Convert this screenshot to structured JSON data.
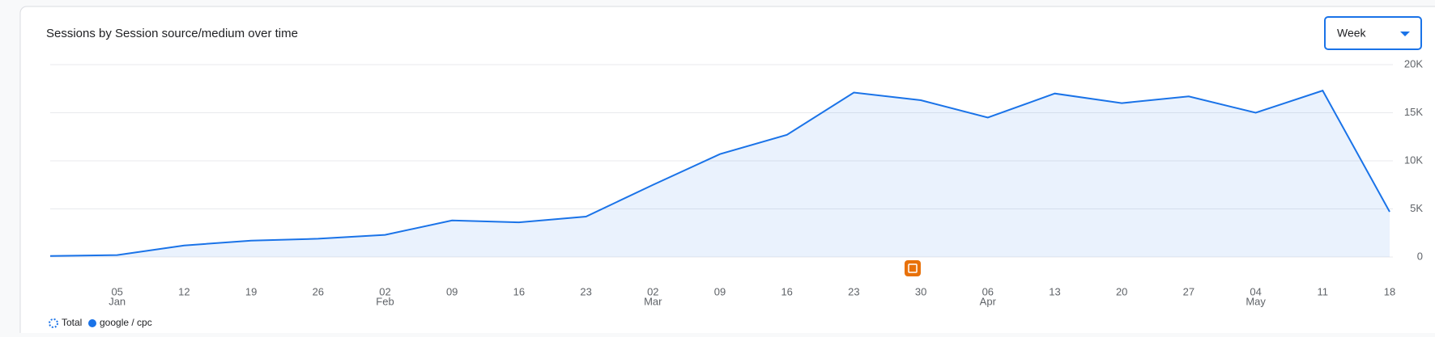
{
  "chart_data": {
    "type": "area",
    "title": "Sessions by Session source/medium over time",
    "period_selector": "Week",
    "total_label": "Total",
    "categories": [
      null,
      "05",
      "12",
      "19",
      "26",
      "02",
      "09",
      "16",
      "23",
      "02",
      "09",
      "16",
      "23",
      "30",
      "06",
      "13",
      "20",
      "27",
      "04",
      "11",
      "18"
    ],
    "category_months": [
      null,
      "Jan",
      null,
      null,
      null,
      "Feb",
      null,
      null,
      null,
      "Mar",
      null,
      null,
      null,
      null,
      "Apr",
      null,
      null,
      null,
      "May",
      null,
      null
    ],
    "series": [
      {
        "name": "google / cpc",
        "color": "#1a73e8",
        "values": [
          100,
          200,
          1200,
          1700,
          1900,
          2300,
          3800,
          3600,
          4200,
          7500,
          10700,
          12700,
          17100,
          16300,
          14500,
          17000,
          16000,
          16700,
          15000,
          17300,
          4700
        ]
      }
    ],
    "ylim": [
      0,
      20000
    ],
    "yticks": [
      0,
      {
        "value": 5000,
        "label": "5K"
      },
      {
        "value": 10000,
        "label": "10K"
      },
      {
        "value": 15000,
        "label": "15K"
      },
      {
        "value": 20000,
        "label": "20K"
      }
    ],
    "grid": true
  }
}
